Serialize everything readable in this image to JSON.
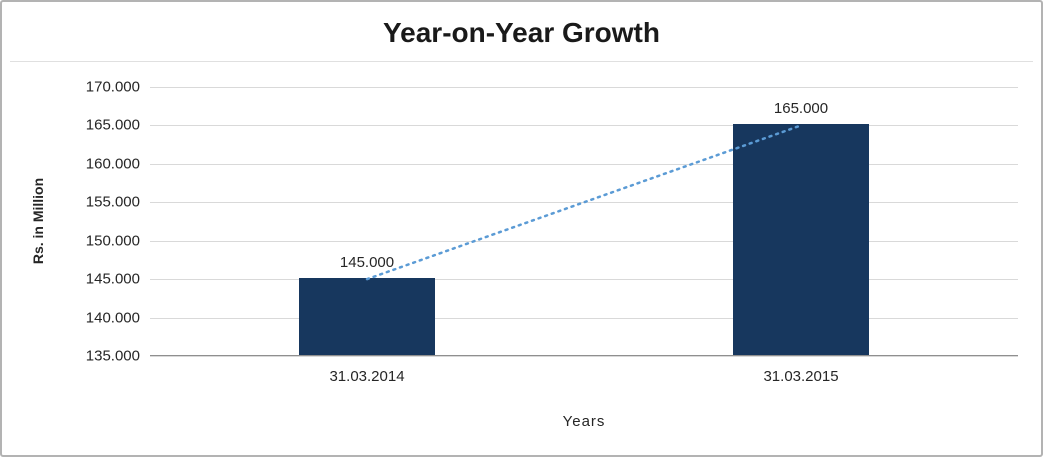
{
  "chart_data": {
    "type": "bar",
    "title": "Year-on-Year Growth",
    "xlabel": "Years",
    "ylabel": "Rs. in Million",
    "categories": [
      "31.03.2014",
      "31.03.2015"
    ],
    "values": [
      145000,
      165000
    ],
    "value_labels": [
      "145.000",
      "165.000"
    ],
    "y_ticks": [
      "170.000",
      "165.000",
      "160.000",
      "155.000",
      "150.000",
      "145.000",
      "140.000",
      "135.000"
    ],
    "y_tick_values": [
      170000,
      165000,
      160000,
      155000,
      150000,
      145000,
      140000,
      135000
    ],
    "ylim": [
      135000,
      170000
    ],
    "bar_color": "#17375E",
    "trendline_color": "#5B9BD5",
    "trendline_style": "dotted",
    "grid": true,
    "legend": "none"
  }
}
